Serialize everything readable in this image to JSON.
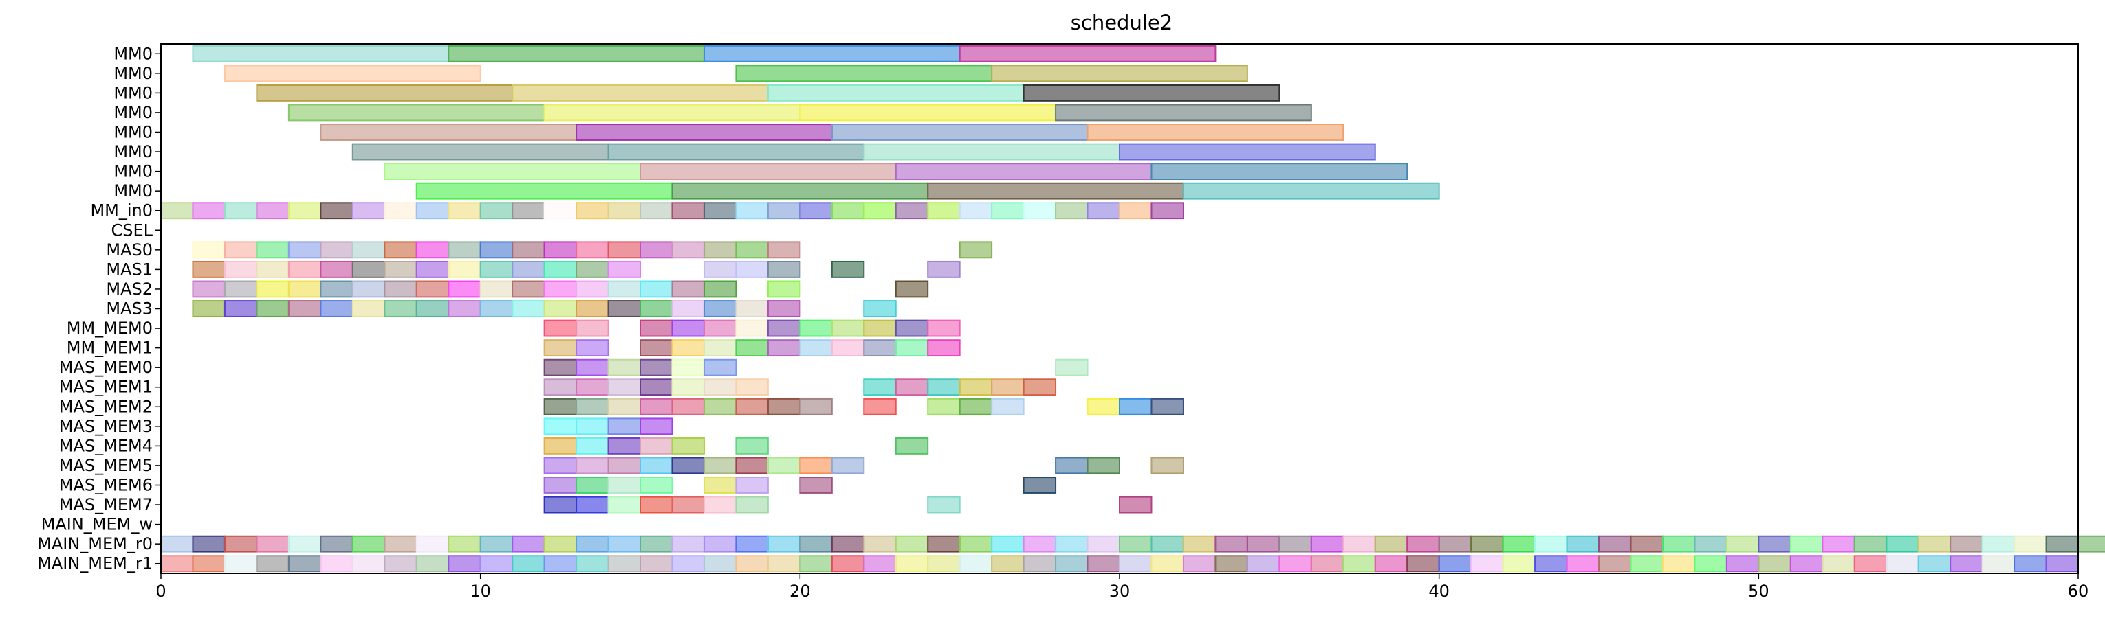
{
  "chart_data": {
    "type": "gantt",
    "title": "schedule2",
    "xlabel": "",
    "ylabel": "",
    "xlim": [
      0,
      60
    ],
    "xticks": [
      0,
      10,
      20,
      30,
      40,
      50,
      60
    ],
    "grid": false,
    "rows": [
      "MM0",
      "MM0",
      "MM0",
      "MM0",
      "MM0",
      "MM0",
      "MM0",
      "MM0",
      "MM_in0",
      "CSEL",
      "MAS0",
      "MAS1",
      "MAS2",
      "MAS3",
      "MM_MEM0",
      "MM_MEM1",
      "MAS_MEM0",
      "MAS_MEM1",
      "MAS_MEM2",
      "MAS_MEM3",
      "MAS_MEM4",
      "MAS_MEM5",
      "MAS_MEM6",
      "MAS_MEM7",
      "MAIN_MEM_w",
      "MAIN_MEM_r0",
      "MAIN_MEM_r1"
    ],
    "bars": [
      {
        "row": 0,
        "start": 1,
        "end": 9,
        "color": "#8fd8d0"
      },
      {
        "row": 0,
        "start": 9,
        "end": 17,
        "color": "#4caf50"
      },
      {
        "row": 0,
        "start": 17,
        "end": 25,
        "color": "#3a8ee0"
      },
      {
        "row": 0,
        "start": 25,
        "end": 33,
        "color": "#c2389e"
      },
      {
        "row": 1,
        "start": 2,
        "end": 10,
        "color": "#ffc8a0"
      },
      {
        "row": 1,
        "start": 18,
        "end": 26,
        "color": "#4cc34c"
      },
      {
        "row": 1,
        "start": 26,
        "end": 34,
        "color": "#b8b050"
      },
      {
        "row": 2,
        "start": 3,
        "end": 11,
        "color": "#b8a040"
      },
      {
        "row": 2,
        "start": 11,
        "end": 19,
        "color": "#d8c868"
      },
      {
        "row": 2,
        "start": 19,
        "end": 27,
        "color": "#88e8c8"
      },
      {
        "row": 2,
        "start": 27,
        "end": 35,
        "color": "#333333"
      },
      {
        "row": 3,
        "start": 4,
        "end": 12,
        "color": "#88c868"
      },
      {
        "row": 3,
        "start": 12,
        "end": 20,
        "color": "#e8f060"
      },
      {
        "row": 3,
        "start": 20,
        "end": 28,
        "color": "#f0f040"
      },
      {
        "row": 3,
        "start": 28,
        "end": 36,
        "color": "#6a7a7a"
      },
      {
        "row": 4,
        "start": 5,
        "end": 13,
        "color": "#c89888"
      },
      {
        "row": 4,
        "start": 13,
        "end": 21,
        "color": "#a030b0"
      },
      {
        "row": 4,
        "start": 21,
        "end": 29,
        "color": "#7898c8"
      },
      {
        "row": 4,
        "start": 29,
        "end": 37,
        "color": "#f0a068"
      },
      {
        "row": 5,
        "start": 6,
        "end": 14,
        "color": "#789898"
      },
      {
        "row": 5,
        "start": 14,
        "end": 22,
        "color": "#68a0a0"
      },
      {
        "row": 5,
        "start": 22,
        "end": 30,
        "color": "#98e0c8"
      },
      {
        "row": 5,
        "start": 30,
        "end": 38,
        "color": "#6868e0"
      },
      {
        "row": 6,
        "start": 7,
        "end": 15,
        "color": "#a8f888"
      },
      {
        "row": 6,
        "start": 15,
        "end": 23,
        "color": "#d09898"
      },
      {
        "row": 6,
        "start": 23,
        "end": 31,
        "color": "#b068c8"
      },
      {
        "row": 6,
        "start": 31,
        "end": 39,
        "color": "#4888b0"
      },
      {
        "row": 7,
        "start": 8,
        "end": 16,
        "color": "#48f048"
      },
      {
        "row": 7,
        "start": 16,
        "end": 24,
        "color": "#4a9a4a"
      },
      {
        "row": 7,
        "start": 24,
        "end": 32,
        "color": "#706048"
      },
      {
        "row": 7,
        "start": 32,
        "end": 40,
        "color": "#58c0c0"
      },
      {
        "row": 10,
        "start": 25,
        "end": 26,
        "color": "#80b050"
      },
      {
        "row": 11,
        "start": 21,
        "end": 22,
        "color": "#306848"
      },
      {
        "row": 11,
        "start": 24,
        "end": 25,
        "color": "#a080d0"
      },
      {
        "row": 12,
        "start": 23,
        "end": 24,
        "color": "#605030"
      },
      {
        "row": 13,
        "start": 22,
        "end": 23,
        "color": "#40d0d8"
      },
      {
        "row": 16,
        "start": 28,
        "end": 29,
        "color": "#b0e8c0"
      },
      {
        "row": 17,
        "start": 22,
        "end": 23,
        "color": "#40d0c0"
      },
      {
        "row": 17,
        "start": 23,
        "end": 24,
        "color": "#d060a0"
      },
      {
        "row": 17,
        "start": 24,
        "end": 25,
        "color": "#40c8c0"
      },
      {
        "row": 17,
        "start": 25,
        "end": 26,
        "color": "#d0c040"
      },
      {
        "row": 17,
        "start": 26,
        "end": 27,
        "color": "#e0a060"
      },
      {
        "row": 17,
        "start": 27,
        "end": 28,
        "color": "#d06040"
      },
      {
        "row": 18,
        "start": 22,
        "end": 23,
        "color": "#f05050"
      },
      {
        "row": 18,
        "start": 24,
        "end": 25,
        "color": "#a0e060"
      },
      {
        "row": 18,
        "start": 25,
        "end": 26,
        "color": "#60b040"
      },
      {
        "row": 18,
        "start": 26,
        "end": 27,
        "color": "#b0d0f0"
      },
      {
        "row": 18,
        "start": 29,
        "end": 30,
        "color": "#f8f040"
      },
      {
        "row": 18,
        "start": 30,
        "end": 31,
        "color": "#3090e0"
      },
      {
        "row": 18,
        "start": 31,
        "end": 32,
        "color": "#385080"
      },
      {
        "row": 20,
        "start": 23,
        "end": 24,
        "color": "#50c060"
      },
      {
        "row": 21,
        "start": 28,
        "end": 29,
        "color": "#4878a8"
      },
      {
        "row": 21,
        "start": 29,
        "end": 30,
        "color": "#508850"
      },
      {
        "row": 21,
        "start": 31,
        "end": 32,
        "color": "#b0a070"
      },
      {
        "row": 22,
        "start": 27,
        "end": 28,
        "color": "#284868"
      },
      {
        "row": 23,
        "start": 24,
        "end": 25,
        "color": "#80d8c8"
      },
      {
        "row": 23,
        "start": 30,
        "end": 31,
        "color": "#b04080"
      }
    ],
    "cells": [
      {
        "row": 8,
        "start": 0,
        "colors": [
          "#b8d890",
          "#e070e8",
          "#90e0c8",
          "#d870e0",
          "#d8f070",
          "#604040",
          "#c090e8",
          "#fff0d8",
          "#98c0f0",
          "#f0e080",
          "#70c8a8",
          "#909090",
          "#fff8f8",
          "#f0c860",
          "#e0d080",
          "#b8c8b8",
          "#a05070",
          "#506878",
          "#90d8f8",
          "#80a0d8",
          "#6868e0",
          "#80e050",
          "#90f840",
          "#9060a0",
          "#b0f050",
          "#c0e0f8",
          "#80f8c0",
          "#c0fff8",
          "#a0c890",
          "#9080e0",
          "#f8b880",
          "#a040a0"
        ]
      },
      {
        "row": 10,
        "start": 1,
        "colors": [
          "#fff8c0",
          "#f8b0a0",
          "#60e880",
          "#88a0e8",
          "#c0a0c0",
          "#b0d0d0",
          "#c86840",
          "#f040e0",
          "#90b0a0",
          "#4878d0",
          "#a06878",
          "#c030c0",
          "#f06898",
          "#e05060",
          "#c050c0",
          "#d090c0",
          "#a0a878",
          "#70c050",
          "#c08080"
        ]
      },
      {
        "row": 11,
        "start": 1,
        "colors": [
          "#c87840",
          "#f8c0d0",
          "#e8e0a8",
          "#f898a8",
          "#c850a0",
          "#707070",
          "#b8a898",
          "#a060e0",
          "#f8f0a0",
          "#60c8b0",
          "#8898d8",
          "#40e8b0",
          "#78a870",
          "#e080f0",
          "#ffffff",
          "#ffffff",
          "#c0b8e8",
          "#c0c0f8",
          "#708898"
        ]
      },
      {
        "row": 12,
        "start": 1,
        "colors": [
          "#c878c8",
          "#a8a8b0",
          "#f0f040",
          "#f0e050",
          "#6890a8",
          "#a8b8d8",
          "#a890a0",
          "#d06860",
          "#f840f0",
          "#e8e0c0",
          "#b07070",
          "#f870f0",
          "#f0a8f0",
          "#b0e0e0",
          "#60e8f0",
          "#b07898",
          "#50a040",
          "#ffffff",
          "#90f050"
        ]
      },
      {
        "row": 13,
        "start": 1,
        "colors": [
          "#90b040",
          "#6040d0",
          "#58a848",
          "#b06888",
          "#5878e0",
          "#e8e098",
          "#68c088",
          "#50b098",
          "#c070d8",
          "#70b8e0",
          "#80f0e8",
          "#c8e870",
          "#d8a040",
          "#584858",
          "#48b858",
          "#e0b8f0",
          "#5088d0",
          "#e0d8c8",
          "#b050b0"
        ]
      },
      {
        "row": 14,
        "start": 12,
        "colors": [
          "#f85070",
          "#f090b0",
          "#ffffff",
          "#c04080",
          "#a040e8",
          "#e070b8",
          "#f8f0d0",
          "#8050b0",
          "#50f070",
          "#b0e070",
          "#c0c040",
          "#6050a8",
          "#f060b8"
        ]
      },
      {
        "row": 15,
        "start": 12,
        "colors": [
          "#d8b060",
          "#a870f0",
          "#ffffff",
          "#a05060",
          "#f8d060",
          "#d8e8b0",
          "#50d050",
          "#b060c0",
          "#a0d0f0",
          "#f8b8d8",
          "#8890b8",
          "#70f0a0",
          "#f040c0"
        ]
      },
      {
        "row": 16,
        "start": 12,
        "colors": [
          "#704870",
          "#a050e8",
          "#c0d8a0",
          "#704890",
          "#e8ffc0",
          "#7898e8"
        ]
      },
      {
        "row": 17,
        "start": 12,
        "colors": [
          "#c090c0",
          "#d070b8",
          "#d0b8d8",
          "#703890",
          "#e0f0b0",
          "#e8d8c0",
          "#f8d0a8"
        ]
      },
      {
        "row": 18,
        "start": 12,
        "colors": [
          "#506848",
          "#80a890",
          "#d8d0a0",
          "#d058a0",
          "#e06080",
          "#90c060",
          "#c86050",
          "#905040",
          "#a08080"
        ]
      },
      {
        "row": 19,
        "start": 12,
        "colors": [
          "#60f8f8",
          "#60f0f8",
          "#7088e8",
          "#a040e8"
        ]
      },
      {
        "row": 20,
        "start": 12,
        "colors": [
          "#e0b040",
          "#60f0f0",
          "#7040c0",
          "#e0a0b8",
          "#a8d048",
          "#ffffff",
          "#60d880"
        ]
      },
      {
        "row": 21,
        "start": 12,
        "colors": [
          "#a870e8",
          "#d090d0",
          "#c080b0",
          "#58c8f0",
          "#303890",
          "#a0b880",
          "#a04050",
          "#a8e890",
          "#f89050",
          "#90a8d8"
        ]
      },
      {
        "row": 22,
        "start": 12,
        "colors": [
          "#a068e0",
          "#40d070",
          "#b0e8c8",
          "#70f8a0",
          "#ffffff",
          "#e0e050",
          "#c0a0f0",
          "#ffffff",
          "#a05080"
        ]
      },
      {
        "row": 23,
        "start": 12,
        "colors": [
          "#3030c0",
          "#3838e0",
          "#b0f8c0",
          "#e85040",
          "#e06060",
          "#f8c0d0",
          "#a0d8a8"
        ]
      },
      {
        "row": 25,
        "start": 0,
        "colors": [
          "#a8c0e8",
          "#383880",
          "#c05050",
          "#e070a0",
          "#c0f0e8",
          "#607088",
          "#50d050",
          "#c0a090",
          "#f0e8f8",
          "#a8d860",
          "#60b0c0",
          "#a058e8",
          "#b0d050",
          "#58a0e0",
          "#70b8f0",
          "#60b090",
          "#c0a8f0",
          "#a888f0",
          "#5070f0",
          "#60c8e8",
          "#508898",
          "#703858",
          "#d0c090",
          "#a0d870",
          "#704040",
          "#80d050",
          "#50e8f0",
          "#e080f0",
          "#80d8f0",
          "#e0c0f0",
          "#70c880",
          "#50c0a8",
          "#d0c060",
          "#a05090",
          "#a05090",
          "#908090",
          "#c040e0",
          "#f0b0d0",
          "#b0b060",
          "#c04090",
          "#906878",
          "#687838",
          "#30e040",
          "#a0f8e8",
          "#40c0d0",
          "#905080",
          "#905050",
          "#50e070",
          "#68b8b0",
          "#b0e080",
          "#6060c0",
          "#80f890",
          "#e060f0",
          "#60b870",
          "#30c8a0",
          "#c8c870",
          "#a08080",
          "#b0f0e0",
          "#e8f0c0",
          "#507060",
          "#70b060",
          "#c8c8c8",
          "#c8e840"
        ]
      },
      {
        "row": 26,
        "start": 0,
        "colors": [
          "#f08080",
          "#e07050",
          "#e0f0f0",
          "#909090",
          "#607890",
          "#f8c0f0",
          "#f0d8f0",
          "#c0a8c0",
          "#a0c8a0",
          "#9050e0",
          "#a088f8",
          "#40c8c8",
          "#7090f0",
          "#60d0c8",
          "#b0b8b8",
          "#c0a0b0",
          "#b0a8f8",
          "#a8c8d8",
          "#f0c088",
          "#e8d090",
          "#80c870",
          "#e84858",
          "#d068e0",
          "#f0f080",
          "#e0e880",
          "#d0f0f0",
          "#c8c060",
          "#a8a0a8",
          "#70b0c0",
          "#a05888",
          "#c0c0e8",
          "#f0e880",
          "#d080d0",
          "#807050",
          "#b090e0",
          "#f060e0",
          "#e07098",
          "#a0e070",
          "#e050b0",
          "#804050",
          "#4060e0",
          "#f0c0f8",
          "#e0f888",
          "#5050e0",
          "#f050e0",
          "#b07070",
          "#70f070",
          "#f8e070",
          "#60f870",
          "#b050e0",
          "#a0b870",
          "#c050e0",
          "#d8e0a0",
          "#f06080",
          "#e0e0f0",
          "#60c8e0",
          "#a050e0",
          "#e0e8e0",
          "#5070e0",
          "#8050e0"
        ]
      }
    ]
  }
}
